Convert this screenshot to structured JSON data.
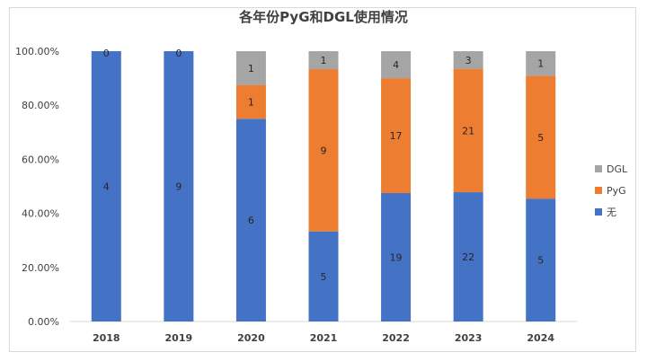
{
  "chart_data": {
    "type": "bar",
    "stacked": "percent",
    "title": "各年份PyG和DGL使用情况",
    "categories": [
      "2018",
      "2019",
      "2020",
      "2021",
      "2022",
      "2023",
      "2024"
    ],
    "series": [
      {
        "name": "无",
        "values": [
          4,
          9,
          6,
          5,
          19,
          22,
          5
        ],
        "color": "#4472c4"
      },
      {
        "name": "PyG",
        "values": [
          0,
          0,
          1,
          9,
          17,
          21,
          5
        ],
        "color": "#ed7d31"
      },
      {
        "name": "DGL",
        "values": [
          0,
          0,
          1,
          1,
          4,
          3,
          1
        ],
        "color": "#a5a5a5"
      }
    ],
    "visible_labels": {
      "PyG": [
        null,
        null,
        "1",
        "9",
        "17",
        "21",
        "5"
      ],
      "DGL": [
        "0",
        "0",
        "1",
        "1",
        "4",
        "3",
        "1"
      ]
    },
    "yticks": [
      "0.00%",
      "20.00%",
      "40.00%",
      "60.00%",
      "80.00%",
      "100.00%"
    ],
    "ylim": [
      0,
      1
    ],
    "legend_position": "right",
    "legend_order": [
      "DGL",
      "PyG",
      "无"
    ],
    "grid": false
  }
}
